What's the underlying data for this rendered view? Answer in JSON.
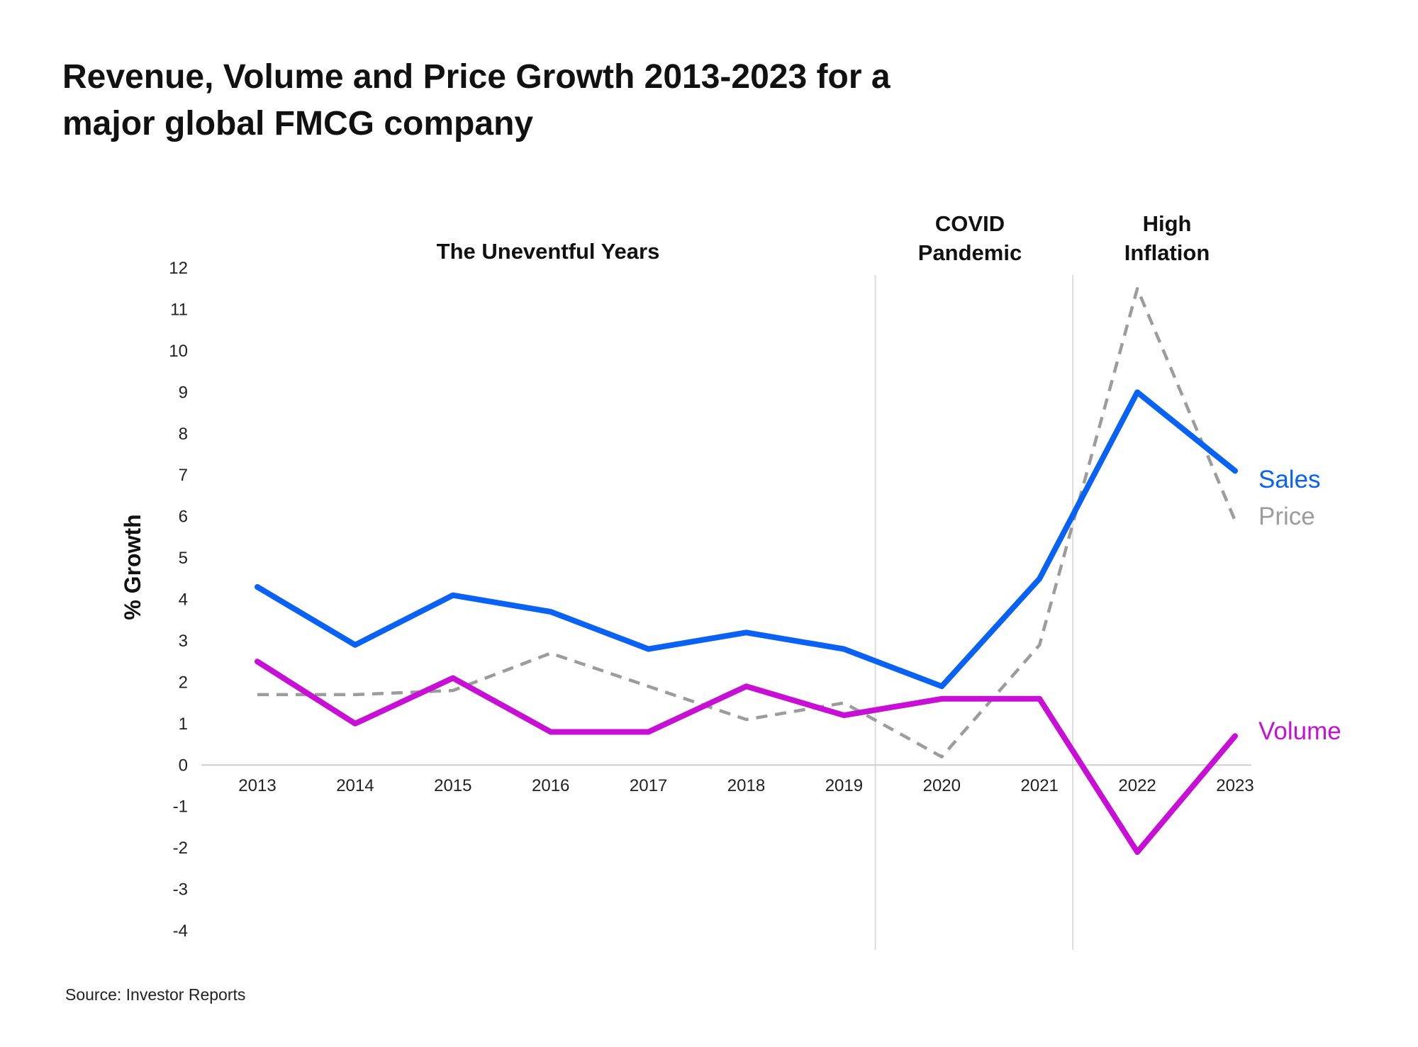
{
  "chart_data": {
    "type": "line",
    "title_lines": [
      "Revenue, Volume and Price Growth 2013-2023 for a",
      "major global FMCG company"
    ],
    "ylabel": "% Growth",
    "xlabel": "",
    "x": [
      "2013",
      "2014",
      "2015",
      "2016",
      "2017",
      "2018",
      "2019",
      "2020",
      "2021",
      "2022",
      "2023"
    ],
    "ylim": [
      -4,
      12
    ],
    "yticks": [
      "-4",
      "-3",
      "-2",
      "-1",
      "0",
      "1",
      "2",
      "3",
      "4",
      "5",
      "6",
      "7",
      "8",
      "9",
      "10",
      "11",
      "12"
    ],
    "grid": false,
    "series": [
      {
        "name": "Sales",
        "color": "#0a62f5",
        "style": "solid",
        "values": [
          4.3,
          2.9,
          4.1,
          3.7,
          2.8,
          3.2,
          2.8,
          1.9,
          4.5,
          9.0,
          7.1
        ]
      },
      {
        "name": "Price",
        "color": "#9c9c9c",
        "style": "dashed",
        "values": [
          1.7,
          1.7,
          1.8,
          2.7,
          1.9,
          1.1,
          1.5,
          0.2,
          2.9,
          11.5,
          5.9
        ]
      },
      {
        "name": "Volume",
        "color": "#c70fd6",
        "style": "solid",
        "values": [
          2.5,
          1.0,
          2.1,
          0.8,
          0.8,
          1.9,
          1.2,
          1.6,
          1.6,
          -2.1,
          0.7
        ]
      }
    ],
    "annotations": [
      {
        "lines": [
          "The Uneventful Years"
        ]
      },
      {
        "lines": [
          "COVID",
          "Pandemic"
        ]
      },
      {
        "lines": [
          "High",
          "Inflation"
        ]
      }
    ],
    "period_dividers": [
      "2019-2020",
      "2021-2022"
    ]
  },
  "source": "Source: Investor Reports"
}
